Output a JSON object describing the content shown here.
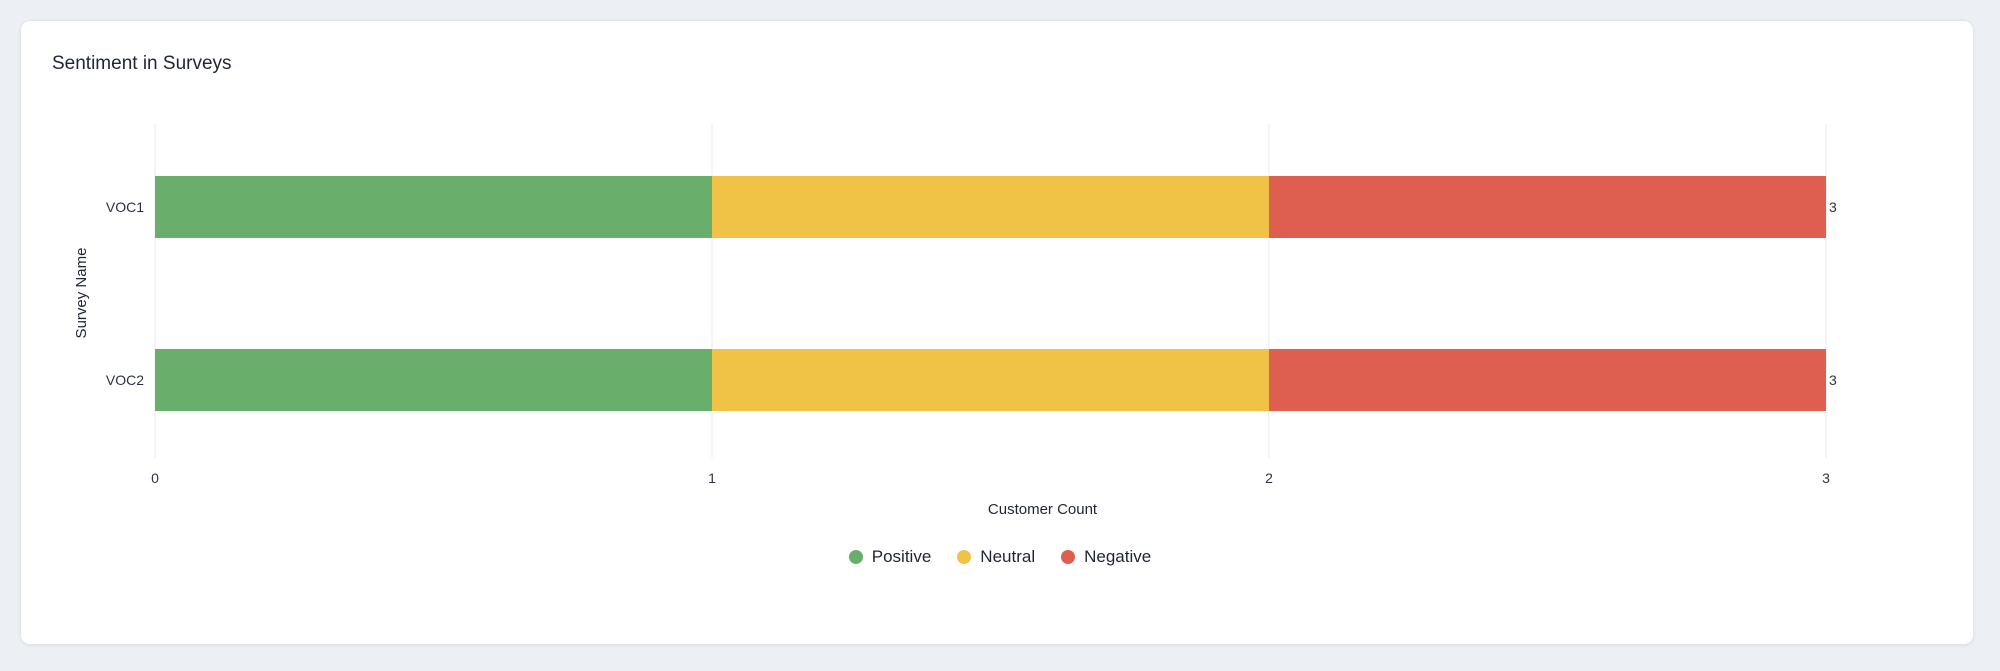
{
  "card": {
    "title": "Sentiment in Surveys"
  },
  "chart_data": {
    "type": "bar",
    "orientation": "horizontal",
    "stacked": true,
    "categories": [
      "VOC1",
      "VOC2"
    ],
    "series": [
      {
        "name": "Positive",
        "color": "#6aae6b",
        "values": [
          1,
          1
        ]
      },
      {
        "name": "Neutral",
        "color": "#f0c246",
        "values": [
          1,
          1
        ]
      },
      {
        "name": "Negative",
        "color": "#de5f4f",
        "values": [
          1,
          1
        ]
      }
    ],
    "totals": [
      "3",
      "3"
    ],
    "xlabel": "Customer Count",
    "ylabel": "Survey Name",
    "xlim": [
      0,
      3
    ],
    "xticks": [
      "0",
      "1",
      "2",
      "3"
    ],
    "grid": true,
    "legend_position": "bottom"
  }
}
